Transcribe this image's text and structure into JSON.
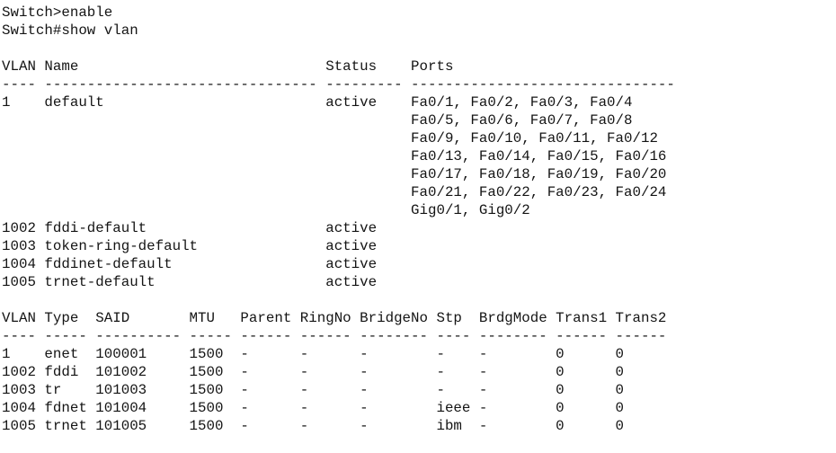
{
  "terminal": {
    "colors": {
      "background": "#ffffff",
      "text": "#141414"
    },
    "commands": [
      {
        "prompt": "Switch>",
        "command": "enable"
      },
      {
        "prompt": "Switch#",
        "command": "show vlan"
      }
    ],
    "screen_lines": [
      "Switch>enable",
      "Switch#show vlan",
      "",
      "VLAN Name                             Status    Ports",
      "---- -------------------------------- --------- -------------------------------",
      "1    default                          active    Fa0/1, Fa0/2, Fa0/3, Fa0/4",
      "                                                Fa0/5, Fa0/6, Fa0/7, Fa0/8",
      "                                                Fa0/9, Fa0/10, Fa0/11, Fa0/12",
      "                                                Fa0/13, Fa0/14, Fa0/15, Fa0/16",
      "                                                Fa0/17, Fa0/18, Fa0/19, Fa0/20",
      "                                                Fa0/21, Fa0/22, Fa0/23, Fa0/24",
      "                                                Gig0/1, Gig0/2",
      "1002 fddi-default                     active",
      "1003 token-ring-default               active",
      "1004 fddinet-default                  active",
      "1005 trnet-default                    active",
      "",
      "VLAN Type  SAID       MTU   Parent RingNo BridgeNo Stp  BrdgMode Trans1 Trans2",
      "---- ----- ---------- ----- ------ ------ -------- ---- -------- ------ ------",
      "1    enet  100001     1500  -      -      -        -    -        0      0",
      "1002 fddi  101002     1500  -      -      -        -    -        0      0",
      "1003 tr    101003     1500  -      -      -        -    -        0      0",
      "1004 fdnet 101004     1500  -      -      -        ieee -        0      0",
      "1005 trnet 101005     1500  -      -      -        ibm  -        0      0"
    ],
    "vlan_status_table": {
      "columns": [
        "VLAN",
        "Name",
        "Status",
        "Ports"
      ],
      "rows": [
        {
          "vlan": "1",
          "name": "default",
          "status": "active",
          "ports": [
            "Fa0/1",
            "Fa0/2",
            "Fa0/3",
            "Fa0/4",
            "Fa0/5",
            "Fa0/6",
            "Fa0/7",
            "Fa0/8",
            "Fa0/9",
            "Fa0/10",
            "Fa0/11",
            "Fa0/12",
            "Fa0/13",
            "Fa0/14",
            "Fa0/15",
            "Fa0/16",
            "Fa0/17",
            "Fa0/18",
            "Fa0/19",
            "Fa0/20",
            "Fa0/21",
            "Fa0/22",
            "Fa0/23",
            "Fa0/24",
            "Gig0/1",
            "Gig0/2"
          ]
        },
        {
          "vlan": "1002",
          "name": "fddi-default",
          "status": "active",
          "ports": []
        },
        {
          "vlan": "1003",
          "name": "token-ring-default",
          "status": "active",
          "ports": []
        },
        {
          "vlan": "1004",
          "name": "fddinet-default",
          "status": "active",
          "ports": []
        },
        {
          "vlan": "1005",
          "name": "trnet-default",
          "status": "active",
          "ports": []
        }
      ]
    },
    "vlan_type_table": {
      "columns": [
        "VLAN",
        "Type",
        "SAID",
        "MTU",
        "Parent",
        "RingNo",
        "BridgeNo",
        "Stp",
        "BrdgMode",
        "Trans1",
        "Trans2"
      ],
      "rows": [
        [
          "1",
          "enet",
          "100001",
          "1500",
          "-",
          "-",
          "-",
          "-",
          "-",
          "0",
          "0"
        ],
        [
          "1002",
          "fddi",
          "101002",
          "1500",
          "-",
          "-",
          "-",
          "-",
          "-",
          "0",
          "0"
        ],
        [
          "1003",
          "tr",
          "101003",
          "1500",
          "-",
          "-",
          "-",
          "-",
          "-",
          "0",
          "0"
        ],
        [
          "1004",
          "fdnet",
          "101004",
          "1500",
          "-",
          "-",
          "-",
          "ieee",
          "-",
          "0",
          "0"
        ],
        [
          "1005",
          "trnet",
          "101005",
          "1500",
          "-",
          "-",
          "-",
          "ibm",
          "-",
          "0",
          "0"
        ]
      ]
    }
  }
}
